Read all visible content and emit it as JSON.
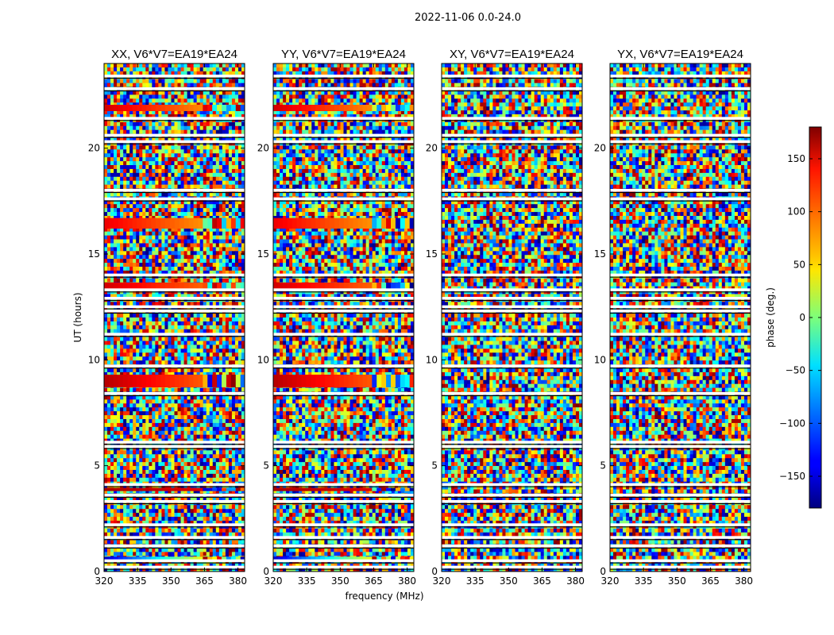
{
  "chart_data": {
    "type": "heatmap",
    "suptitle": "2022-11-06 0.0-24.0",
    "panels": [
      {
        "title": "XX, V6*V7=EA19*EA24"
      },
      {
        "title": "YY, V6*V7=EA19*EA24"
      },
      {
        "title": "XY, V6*V7=EA19*EA24"
      },
      {
        "title": "YX, V6*V7=EA19*EA24"
      }
    ],
    "xlabel": "frequency (MHz)",
    "ylabel": "UT (hours)",
    "xlim": [
      320,
      383
    ],
    "ylim": [
      0,
      24
    ],
    "xticks": [
      "320",
      "335",
      "350",
      "365",
      "380"
    ],
    "xtick_values": [
      320,
      335,
      350,
      365,
      380
    ],
    "yticks": [
      "0",
      "5",
      "10",
      "15",
      "20"
    ],
    "ytick_values": [
      0,
      5,
      10,
      15,
      20
    ],
    "colorbar": {
      "label": "phase (deg.)",
      "range": [
        -180,
        180
      ],
      "ticks": [
        "150",
        "100",
        "50",
        "0",
        "−50",
        "−100",
        "−150"
      ],
      "tick_values": [
        150,
        100,
        50,
        0,
        -50,
        -100,
        -150
      ],
      "colormap": "jet"
    },
    "blank_rows_hours": [
      0.2,
      0.5,
      1.2,
      1.6,
      2.2,
      3.3,
      3.6,
      4.1,
      5.9,
      6.1,
      8.4,
      9.7,
      11.2,
      12.3,
      12.5,
      12.9,
      13.3,
      14.0,
      17.6,
      18.0,
      20.3,
      20.6,
      21.4,
      22.8,
      23.4
    ],
    "coherent_bands": [
      {
        "panels": [
          0,
          1
        ],
        "start_hour": 21.75,
        "end_hour": 22.05,
        "phase_start": 150,
        "phase_end": 60
      },
      {
        "panels": [
          0,
          1
        ],
        "start_hour": 16.2,
        "end_hour": 16.7,
        "phase_start": 140,
        "phase_end": 60
      },
      {
        "panels": [
          0,
          1
        ],
        "start_hour": 13.35,
        "end_hour": 13.65,
        "phase_start": 150,
        "phase_end": 80
      },
      {
        "panels": [
          0,
          1
        ],
        "start_hour": 8.7,
        "end_hour": 9.3,
        "phase_start": 160,
        "phase_end": 80
      },
      {
        "panels": [
          0,
          1
        ],
        "start_hour": 3.8,
        "end_hour": 3.95,
        "phase_start": 165,
        "phase_end": 140
      },
      {
        "panels": [
          0,
          1
        ],
        "start_hour": 0.45,
        "end_hour": 0.7,
        "phase_start": -150,
        "phase_end": 120
      }
    ]
  }
}
